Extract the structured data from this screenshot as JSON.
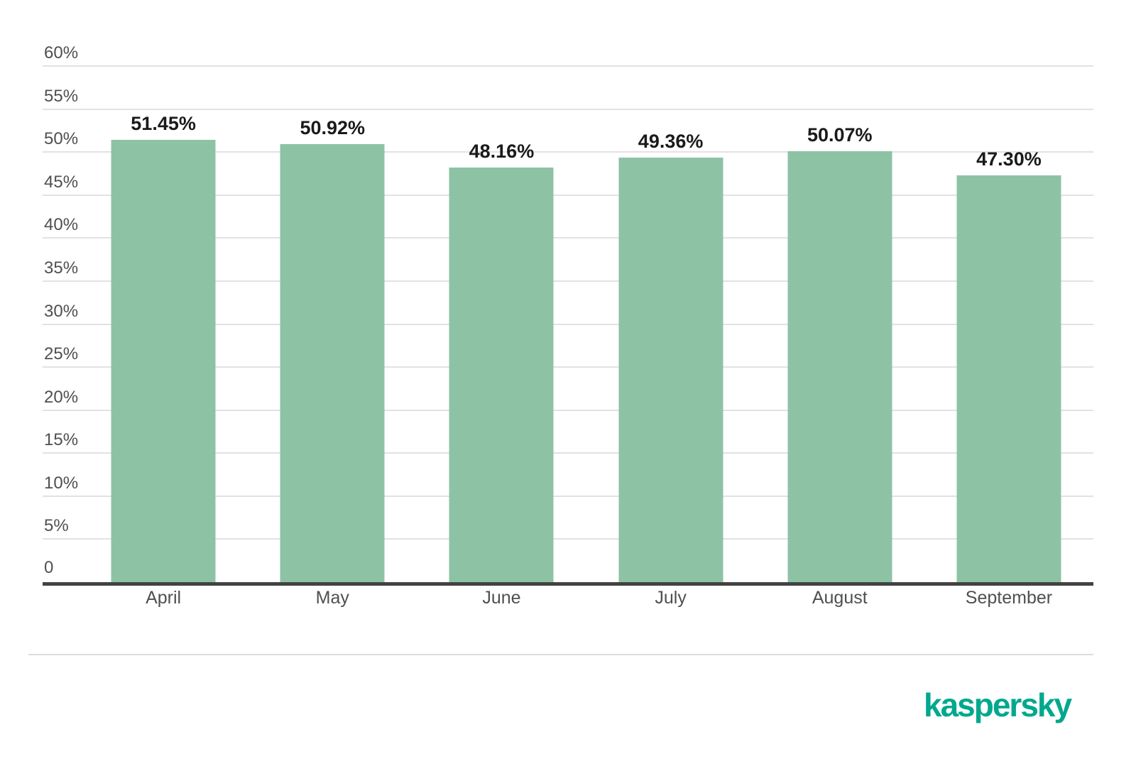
{
  "chart_data": {
    "type": "bar",
    "title": "",
    "xlabel": "",
    "ylabel": "",
    "categories": [
      "April",
      "May",
      "June",
      "July",
      "August",
      "September"
    ],
    "values": [
      51.45,
      50.92,
      48.16,
      49.36,
      50.07,
      47.3
    ],
    "value_labels": [
      "51.45%",
      "50.92%",
      "48.16%",
      "49.36%",
      "50.07%",
      "47.30%"
    ],
    "ylim": [
      0,
      60
    ],
    "ytick_step": 5,
    "yticks": [
      {
        "value": 0,
        "label": "0"
      },
      {
        "value": 5,
        "label": "5%"
      },
      {
        "value": 10,
        "label": "10%"
      },
      {
        "value": 15,
        "label": "15%"
      },
      {
        "value": 20,
        "label": "20%"
      },
      {
        "value": 25,
        "label": "25%"
      },
      {
        "value": 30,
        "label": "30%"
      },
      {
        "value": 35,
        "label": "35%"
      },
      {
        "value": 40,
        "label": "40%"
      },
      {
        "value": 45,
        "label": "45%"
      },
      {
        "value": 50,
        "label": "50%"
      },
      {
        "value": 55,
        "label": "55%"
      },
      {
        "value": 60,
        "label": "60%"
      }
    ],
    "grid": true,
    "legend": false,
    "bar_color": "#8DC3A4"
  },
  "branding": {
    "logo_text": "kaspersky",
    "logo_color": "#00A88E"
  },
  "colors": {
    "background": "#FFFFFF",
    "bar": "#8DC3A4",
    "gridline": "#E2E2E2",
    "axis_line": "#424242",
    "axis_text": "#4F4F4F",
    "value_text": "#1A1A1A",
    "divider": "#DCDCDC"
  }
}
